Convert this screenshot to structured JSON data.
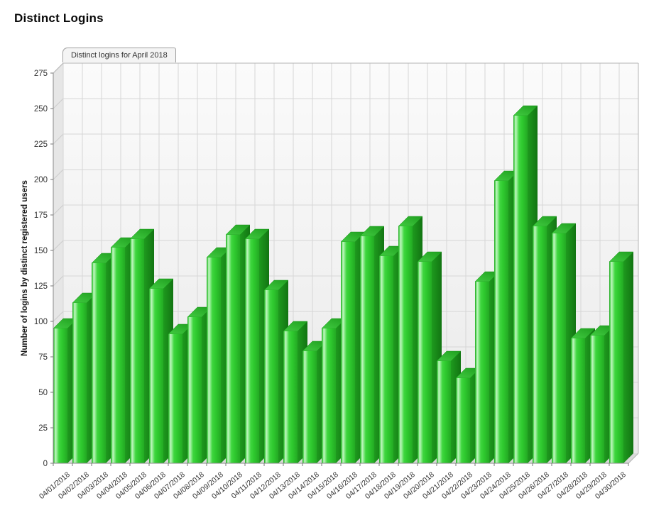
{
  "page": {
    "title": "Distinct Logins"
  },
  "chart": {
    "tab_label": "Distinct logins for April 2018"
  },
  "chart_data": {
    "type": "bar",
    "style": "3d-vertical-bars",
    "title": "Distinct logins for April 2018",
    "categories": [
      "04/01/2018",
      "04/02/2018",
      "04/03/2018",
      "04/04/2018",
      "04/05/2018",
      "04/06/2018",
      "04/07/2018",
      "04/08/2018",
      "04/09/2018",
      "04/10/2018",
      "04/11/2018",
      "04/12/2018",
      "04/13/2018",
      "04/14/2018",
      "04/15/2018",
      "04/16/2018",
      "04/17/2018",
      "04/18/2018",
      "04/19/2018",
      "04/20/2018",
      "04/21/2018",
      "04/22/2018",
      "04/23/2018",
      "04/24/2018",
      "04/25/2018",
      "04/26/2018",
      "04/27/2018",
      "04/28/2018",
      "04/29/2018",
      "04/30/2018"
    ],
    "values": [
      95,
      113,
      141,
      152,
      158,
      123,
      91,
      103,
      145,
      161,
      158,
      122,
      93,
      79,
      95,
      156,
      160,
      146,
      167,
      142,
      72,
      60,
      128,
      199,
      245,
      167,
      162,
      88,
      90,
      142
    ],
    "xlabel": "",
    "ylabel": "Number of logins by distinct registered users",
    "ylim": [
      0,
      275
    ],
    "ytick_step": 25,
    "grid": true,
    "legend_position": "none",
    "bar_color": "#33cc33",
    "bar_color_dark": "#1a8a1a",
    "bar_highlight": "#c4f6c4"
  }
}
